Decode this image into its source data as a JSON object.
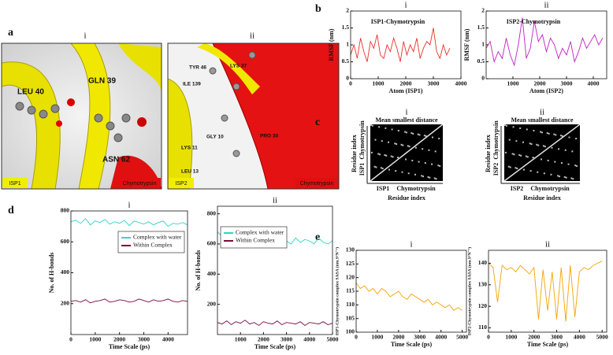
{
  "panels": [
    {
      "label": "a",
      "subpanels": [
        {
          "title": "i",
          "residues": [
            "LEU 40",
            "GLN 39",
            "ASN 62"
          ],
          "protein": "ISP1",
          "partner": "Chymotrypsin"
        },
        {
          "title": "ii",
          "residues": [
            "TYR 46",
            "LYS 37",
            "ILE 139",
            "GLY 10",
            "LYS 11",
            "LEU 13",
            "PRO 30"
          ],
          "protein": "ISP2",
          "partner": "Chymotrypsin"
        }
      ]
    },
    {
      "label": "b"
    },
    {
      "label": "c",
      "subpanels": [
        {
          "title": "i",
          "heading": "Mean smallest distance",
          "axis_label": "Residue index",
          "protein": "ISP1",
          "partner": "Chymotrypsin"
        },
        {
          "title": "ii",
          "heading": "Mean smallest distance",
          "axis_label": "Residue index",
          "protein": "ISP2",
          "partner": "Chymotrypsin"
        }
      ]
    },
    {
      "label": "d"
    },
    {
      "label": "e"
    }
  ],
  "chart_data": [
    {
      "type": "line",
      "title": "i",
      "xlabel": "Atom (ISP1)",
      "ylabel": "RMSF (nm)",
      "annotation": "ISP1-Chymotrypsin",
      "x": [
        0,
        120,
        240,
        360,
        480,
        600,
        720,
        840,
        960,
        1080,
        1200,
        1320,
        1440,
        1560,
        1680,
        1800,
        1920,
        2040,
        2160,
        2280,
        2400,
        2520,
        2640,
        2760,
        2880,
        3000,
        3120,
        3240,
        3360,
        3480,
        3600
      ],
      "series": [
        {
          "color": "#e8302a",
          "values": [
            0.7,
            1.0,
            0.6,
            1.2,
            0.8,
            0.5,
            1.1,
            0.9,
            1.3,
            0.7,
            0.6,
            1.0,
            0.8,
            1.2,
            0.9,
            0.5,
            1.1,
            0.7,
            1.0,
            0.8,
            1.2,
            0.6,
            0.9,
            1.1,
            1.0,
            1.5,
            0.8,
            0.6,
            1.0,
            0.7,
            0.9
          ]
        }
      ],
      "xlim": [
        0,
        4000
      ],
      "xticks": [
        0,
        1000,
        2000,
        3000,
        4000
      ],
      "ylim": [
        0,
        2
      ],
      "yticks": [
        0,
        0.5,
        1,
        1.5,
        2
      ]
    },
    {
      "type": "line",
      "title": "ii",
      "xlabel": "Atom (ISP2)",
      "ylabel": "RMSF (nm)",
      "annotation": "ISP2-Chymotrypsin",
      "x": [
        0,
        150,
        300,
        450,
        600,
        750,
        900,
        1050,
        1200,
        1350,
        1500,
        1650,
        1800,
        1950,
        2100,
        2250,
        2400,
        2550,
        2700,
        2850,
        3000,
        3150,
        3300,
        3450,
        3600,
        3750,
        3900,
        4050,
        4200,
        4350
      ],
      "series": [
        {
          "color": "#c020c0",
          "values": [
            0.9,
            1.1,
            0.5,
            0.8,
            0.6,
            1.2,
            0.7,
            0.4,
            1.0,
            1.8,
            0.6,
            0.9,
            1.7,
            1.1,
            1.3,
            0.8,
            1.2,
            1.0,
            0.6,
            0.9,
            0.7,
            1.1,
            0.5,
            0.8,
            1.2,
            0.9,
            1.1,
            1.3,
            1.0,
            1.2
          ]
        }
      ],
      "xlim": [
        0,
        4500
      ],
      "xticks": [
        1000,
        2000,
        3000,
        4000
      ],
      "ylim": [
        0,
        2
      ],
      "yticks": [
        0,
        0.5,
        1,
        1.5,
        2
      ]
    },
    {
      "type": "line",
      "title": "i",
      "xlabel": "Time Scale (ps)",
      "ylabel": "No. of H-bonds",
      "legend": "upper right",
      "x": [
        0,
        200,
        400,
        600,
        800,
        1000,
        1200,
        1400,
        1600,
        1800,
        2000,
        2200,
        2400,
        2600,
        2800,
        3000,
        3200,
        3400,
        3600,
        3800,
        4000,
        4200,
        4400,
        4600,
        4800
      ],
      "series": [
        {
          "name": "Complex with water",
          "color": "#30d5c8",
          "values": [
            730,
            740,
            720,
            750,
            710,
            735,
            725,
            745,
            715,
            730,
            720,
            740,
            705,
            735,
            725,
            715,
            730,
            710,
            725,
            735,
            700,
            720,
            715,
            725,
            710
          ]
        },
        {
          "name": "Within Complex",
          "color": "#7a0b3c",
          "values": [
            215,
            220,
            210,
            225,
            205,
            215,
            220,
            230,
            210,
            215,
            225,
            220,
            210,
            215,
            230,
            220,
            210,
            225,
            215,
            220,
            230,
            215,
            210,
            220,
            215
          ]
        }
      ],
      "xlim": [
        0,
        4800
      ],
      "xticks": [
        0,
        1000,
        2000,
        3000,
        4000
      ],
      "ylim": [
        0,
        800
      ],
      "yticks": [
        200,
        400,
        600,
        800
      ]
    },
    {
      "type": "line",
      "title": "ii",
      "xlabel": "Time Scale (ps)",
      "ylabel": "No. of H-bonds",
      "legend": "upper left",
      "x": [
        0,
        200,
        400,
        600,
        800,
        1000,
        1200,
        1400,
        1600,
        1800,
        2000,
        2200,
        2400,
        2600,
        2800,
        3000,
        3200,
        3400,
        3600,
        3800,
        4000,
        4200,
        4400,
        4600,
        4800,
        5000
      ],
      "series": [
        {
          "name": "Complex with water",
          "color": "#30d5c8",
          "values": [
            680,
            650,
            700,
            640,
            660,
            630,
            670,
            620,
            650,
            640,
            660,
            610,
            640,
            630,
            650,
            620,
            600,
            640,
            610,
            630,
            620,
            600,
            640,
            610,
            600,
            620
          ]
        },
        {
          "name": "Within Complex",
          "color": "#7a0b3c",
          "values": [
            80,
            70,
            90,
            65,
            85,
            75,
            95,
            70,
            80,
            60,
            85,
            75,
            70,
            90,
            65,
            80,
            75,
            70,
            85,
            60,
            80,
            75,
            70,
            85,
            65,
            75
          ]
        }
      ],
      "xlim": [
        0,
        5000
      ],
      "xticks": [
        1000,
        2000,
        3000,
        4000,
        5000
      ],
      "ylim": [
        0,
        850
      ],
      "yticks": [
        200,
        400,
        600,
        800
      ]
    },
    {
      "type": "line",
      "title": "i",
      "xlabel": "Time Scale (ps)",
      "ylabel": "ISP1-Chymotrypsin complex SASA (nm.S²N⁻¹)",
      "x": [
        0,
        200,
        400,
        600,
        800,
        1000,
        1200,
        1400,
        1600,
        1800,
        2000,
        2200,
        2400,
        2600,
        2800,
        3000,
        3200,
        3400,
        3600,
        3800,
        4000,
        4200,
        4400,
        4600,
        4800,
        5000
      ],
      "series": [
        {
          "color": "#f5a300",
          "values": [
            118,
            116,
            117,
            115,
            116,
            114,
            116,
            115,
            113,
            114,
            115,
            113,
            112,
            114,
            113,
            112,
            111,
            112,
            110,
            111,
            110,
            109,
            110,
            108,
            109,
            108
          ]
        }
      ],
      "xlim": [
        0,
        5200
      ],
      "xticks": [
        0,
        1000,
        2000,
        3000,
        4000,
        5000
      ],
      "ylim": [
        100,
        130
      ],
      "yticks": [
        100,
        105,
        110,
        115,
        120,
        125,
        130
      ]
    },
    {
      "type": "line",
      "title": "ii",
      "xlabel": "Time Scale (ps)",
      "ylabel": "ISP2-Chymotrypsin complex SASA (nm.S²N⁻¹)",
      "x": [
        0,
        200,
        400,
        600,
        800,
        1000,
        1200,
        1400,
        1600,
        1800,
        2000,
        2200,
        2400,
        2600,
        2800,
        3000,
        3200,
        3400,
        3600,
        3800,
        4000,
        4200,
        4400,
        4600,
        4800,
        5000
      ],
      "series": [
        {
          "color": "#f5a300",
          "values": [
            140,
            138,
            122,
            139,
            137,
            138,
            136,
            139,
            137,
            135,
            138,
            114,
            137,
            118,
            136,
            114,
            138,
            113,
            139,
            115,
            136,
            138,
            137,
            139,
            140,
            141
          ]
        }
      ],
      "xlim": [
        0,
        5200
      ],
      "xticks": [
        0,
        1000,
        2000,
        3000,
        4000,
        5000
      ],
      "ylim": [
        108,
        146
      ],
      "yticks": [
        110,
        120,
        130,
        140
      ]
    }
  ]
}
